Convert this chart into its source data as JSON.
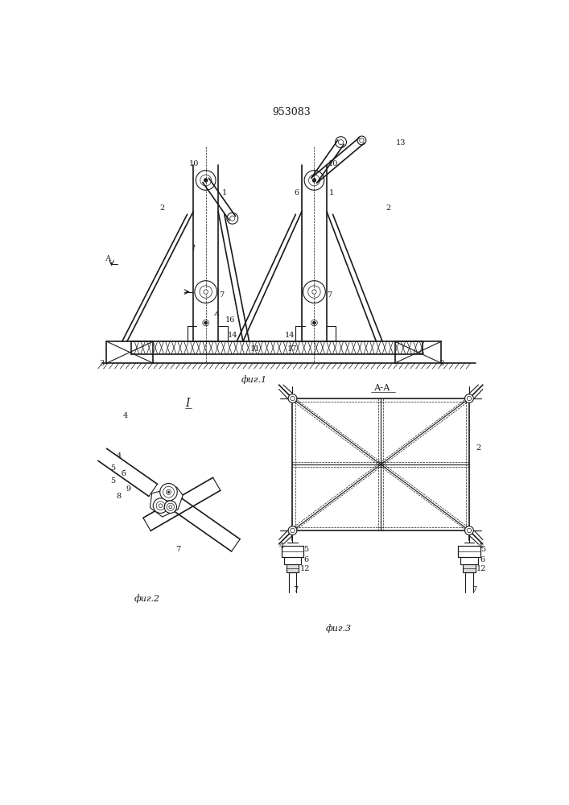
{
  "title": "953083",
  "bg_color": "#ffffff",
  "line_color": "#1a1a1a",
  "fig1_label": "фиг.1",
  "fig2_label": "фиг.2",
  "fig3_label": "фиг.3",
  "aa_label": "А-А",
  "fig_width": 7.07,
  "fig_height": 10.0
}
